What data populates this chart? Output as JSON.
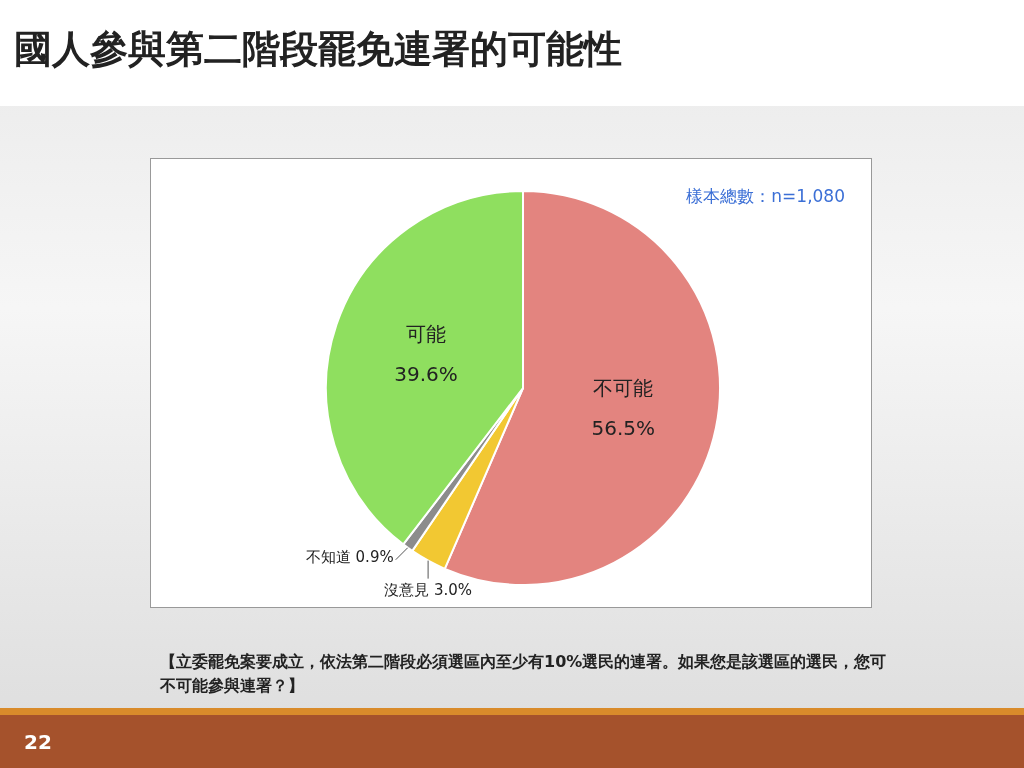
{
  "chart_data": {
    "type": "pie",
    "title": "國人參與第二階段罷免連署的可能性",
    "categories": [
      "不可能",
      "沒意見",
      "不知道",
      "可能"
    ],
    "values": [
      56.5,
      3.0,
      0.9,
      39.6
    ],
    "value_labels": [
      "56.5%",
      "3.0%",
      "0.9%",
      "39.6%"
    ],
    "colors": [
      "#e3847f",
      "#f2c832",
      "#8c8c8c",
      "#8fdf5f"
    ],
    "legend": false,
    "annotations": [
      "樣本總數：n=1,080",
      "【立委罷免案要成立，依法第二階段必須選區內至少有10%選民的連署。如果您是該選區的選民，您可不可能參與連署？】",
      "22"
    ]
  }
}
